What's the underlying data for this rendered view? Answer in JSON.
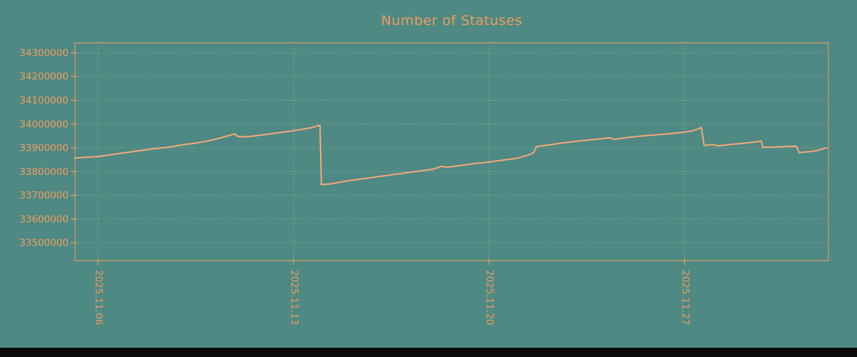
{
  "chart_data": {
    "type": "line",
    "title": "Number of Statuses",
    "xlabel": "",
    "ylabel": "",
    "colors": {
      "background": "#4e8983",
      "text": "#f09c5e",
      "line": "#f4a878",
      "frame": "#eda05f",
      "grid": "rgba(245,228,190,0.55)",
      "bottom_bar": "#0b0b0b"
    },
    "grid": true,
    "legend": "none",
    "ylim": [
      33425000,
      34342000
    ],
    "xlim": [
      -0.82,
      26.15
    ],
    "y_ticks": [
      33500000,
      33600000,
      33700000,
      33800000,
      33900000,
      34000000,
      34100000,
      34200000,
      34300000
    ],
    "x_ticks": [
      {
        "label": "2025.11.06",
        "day": 0
      },
      {
        "label": "2025.11.13",
        "day": 7
      },
      {
        "label": "2025.11.20",
        "day": 14
      },
      {
        "label": "2025.11.27",
        "day": 21
      }
    ],
    "series": [
      {
        "name": "statuses",
        "points": [
          [
            -0.82,
            33857000
          ],
          [
            0.0,
            33863000
          ],
          [
            1.0,
            33880000
          ],
          [
            2.0,
            33896000
          ],
          [
            2.5,
            33902000
          ],
          [
            3.0,
            33912000
          ],
          [
            3.5,
            33920000
          ],
          [
            4.0,
            33930000
          ],
          [
            4.4,
            33942000
          ],
          [
            4.7,
            33952000
          ],
          [
            4.9,
            33958000
          ],
          [
            5.0,
            33948000
          ],
          [
            5.3,
            33946000
          ],
          [
            5.6,
            33950000
          ],
          [
            6.0,
            33956000
          ],
          [
            6.5,
            33964000
          ],
          [
            7.0,
            33972000
          ],
          [
            7.3,
            33978000
          ],
          [
            7.6,
            33984000
          ],
          [
            7.8,
            33990000
          ],
          [
            7.9,
            33995000
          ],
          [
            7.95,
            33993000
          ],
          [
            8.0,
            33745000
          ],
          [
            8.3,
            33748000
          ],
          [
            9.0,
            33762000
          ],
          [
            9.5,
            33770000
          ],
          [
            10.0,
            33778000
          ],
          [
            10.5,
            33786000
          ],
          [
            11.0,
            33794000
          ],
          [
            11.5,
            33802000
          ],
          [
            12.0,
            33810000
          ],
          [
            12.3,
            33822000
          ],
          [
            12.5,
            33818000
          ],
          [
            13.0,
            33826000
          ],
          [
            13.5,
            33834000
          ],
          [
            14.0,
            33840000
          ],
          [
            14.5,
            33848000
          ],
          [
            15.0,
            33856000
          ],
          [
            15.3,
            33866000
          ],
          [
            15.5,
            33874000
          ],
          [
            15.6,
            33880000
          ],
          [
            15.7,
            33905000
          ],
          [
            16.0,
            33910000
          ],
          [
            16.5,
            33918000
          ],
          [
            17.0,
            33926000
          ],
          [
            17.5,
            33932000
          ],
          [
            18.0,
            33938000
          ],
          [
            18.3,
            33942000
          ],
          [
            18.5,
            33936000
          ],
          [
            19.0,
            33944000
          ],
          [
            19.5,
            33950000
          ],
          [
            20.0,
            33955000
          ],
          [
            20.5,
            33960000
          ],
          [
            21.0,
            33966000
          ],
          [
            21.3,
            33972000
          ],
          [
            21.5,
            33980000
          ],
          [
            21.6,
            33985000
          ],
          [
            21.7,
            33910000
          ],
          [
            22.0,
            33914000
          ],
          [
            22.2,
            33908000
          ],
          [
            22.5,
            33912000
          ],
          [
            22.8,
            33916000
          ],
          [
            23.2,
            33920000
          ],
          [
            23.6,
            33926000
          ],
          [
            23.75,
            33928000
          ],
          [
            23.8,
            33902000
          ],
          [
            24.2,
            33903000
          ],
          [
            24.6,
            33905000
          ],
          [
            25.0,
            33907000
          ],
          [
            25.1,
            33880000
          ],
          [
            25.5,
            33884000
          ],
          [
            25.8,
            33890000
          ],
          [
            26.1,
            33900000
          ]
        ]
      }
    ]
  }
}
